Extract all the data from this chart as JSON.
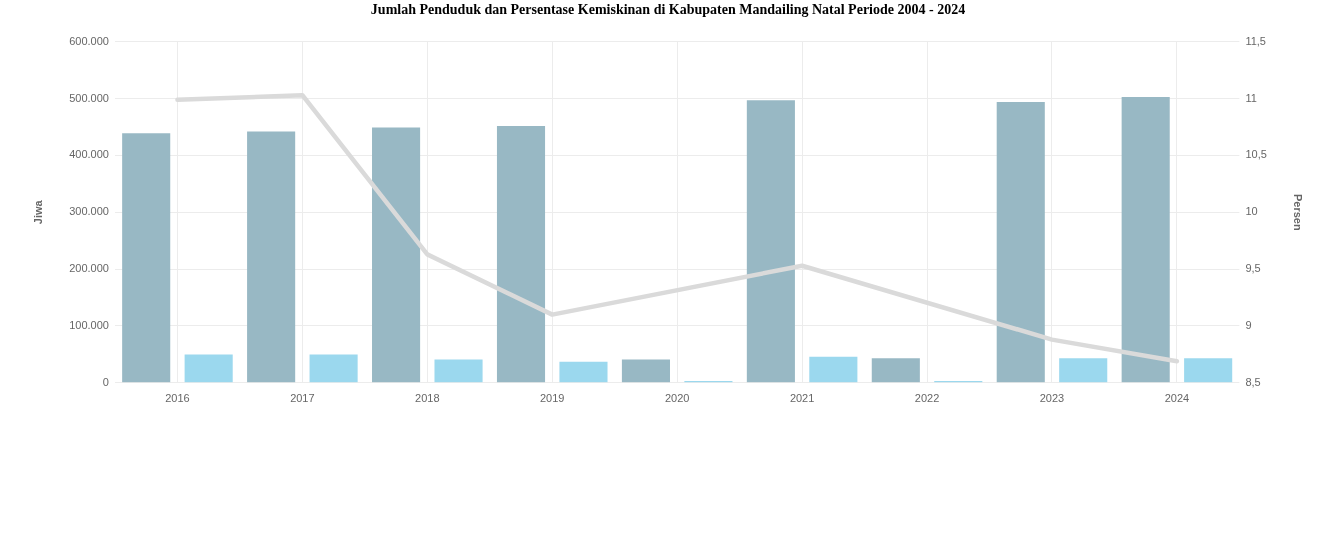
{
  "chart_data": {
    "type": "bar",
    "title": "Jumlah Penduduk dan Persentase Kemiskinan di Kabupaten Mandailing Natal Periode 2004 - 2024",
    "ylabel": "Jiwa",
    "y2label": "Persen",
    "categories": [
      "2016",
      "2017",
      "2018",
      "2019",
      "2020",
      "2021",
      "2022",
      "2023",
      "2024"
    ],
    "series": [
      {
        "color": "#98b8c4",
        "values": [
          439000,
          442000,
          449000,
          452000,
          41000,
          497000,
          43000,
          494000,
          503000
        ]
      },
      {
        "color": "#9bd8ee",
        "values": [
          50000,
          50000,
          41000,
          37000,
          3000,
          46000,
          3000,
          43000,
          43000
        ]
      },
      {
        "type": "line",
        "axis": "y2",
        "color": "#dadada",
        "values": [
          10.99,
          11.03,
          9.63,
          9.1,
          null,
          9.53,
          null,
          8.88,
          8.69
        ]
      }
    ],
    "ylim": [
      0,
      600000
    ],
    "yticks": [
      {
        "value": 0,
        "label": "0"
      },
      {
        "value": 100000,
        "label": "100.000"
      },
      {
        "value": 200000,
        "label": "200.000"
      },
      {
        "value": 300000,
        "label": "300.000"
      },
      {
        "value": 400000,
        "label": "400.000"
      },
      {
        "value": 500000,
        "label": "500.000"
      },
      {
        "value": 600000,
        "label": "600.000"
      }
    ],
    "y2lim": [
      8.5,
      11.5
    ],
    "y2ticks": [
      {
        "value": 8.5,
        "label": "8,5"
      },
      9,
      {
        "value": 9.5,
        "label": "9,5"
      },
      10,
      {
        "value": 10.5,
        "label": "10,5"
      },
      11,
      {
        "value": 11.5,
        "label": "11,5"
      }
    ],
    "grid": true,
    "marker": "none"
  }
}
